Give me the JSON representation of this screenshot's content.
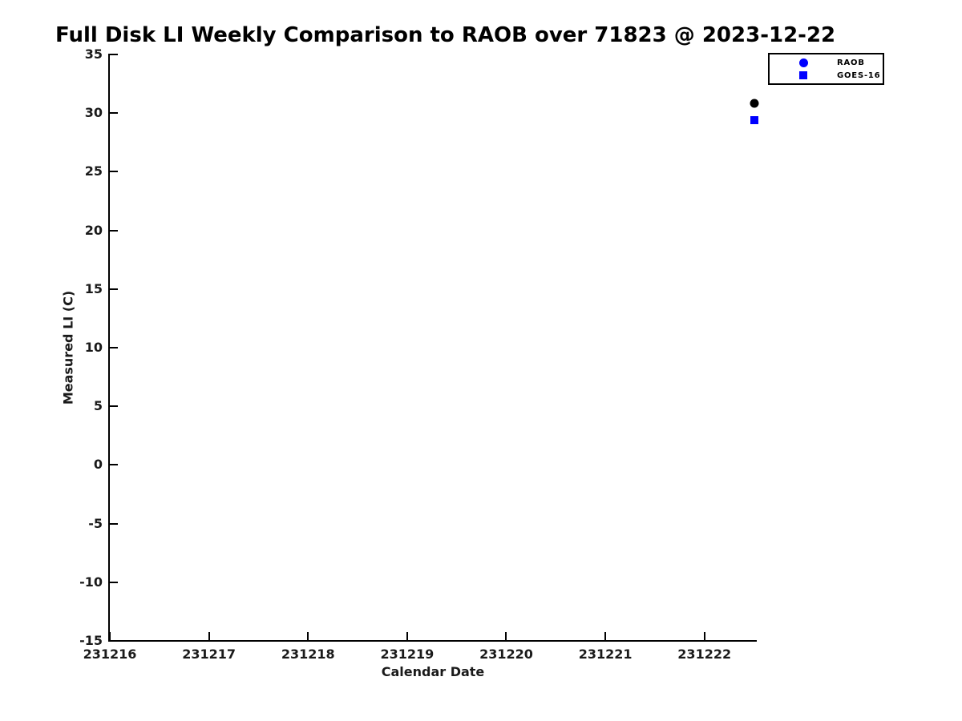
{
  "chart_data": {
    "type": "scatter",
    "title": "Full Disk LI Weekly Comparison to RAOB over 71823 @ 2023-12-22",
    "xlabel": "Calendar Date",
    "ylabel": "Measured LI (C)",
    "xlim": [
      231216,
      231222.52
    ],
    "ylim": [
      -15,
      35
    ],
    "grid": false,
    "legend_position": "top-right",
    "x_ticks": [
      {
        "value": 231216,
        "label": "231216"
      },
      {
        "value": 231217,
        "label": "231217"
      },
      {
        "value": 231218,
        "label": "231218"
      },
      {
        "value": 231219,
        "label": "231219"
      },
      {
        "value": 231220,
        "label": "231220"
      },
      {
        "value": 231221,
        "label": "231221"
      },
      {
        "value": 231222,
        "label": "231222"
      }
    ],
    "y_ticks": [
      {
        "value": 35,
        "label": "35"
      },
      {
        "value": 30,
        "label": "30"
      },
      {
        "value": 25,
        "label": "25"
      },
      {
        "value": 20,
        "label": "20"
      },
      {
        "value": 15,
        "label": "15"
      },
      {
        "value": 10,
        "label": "10"
      },
      {
        "value": 5,
        "label": "5"
      },
      {
        "value": 0,
        "label": "0"
      },
      {
        "value": -5,
        "label": "-5"
      },
      {
        "value": -10,
        "label": "-10"
      },
      {
        "value": -15,
        "label": "-15"
      }
    ],
    "series": [
      {
        "name": "RAOB",
        "marker": "circle",
        "data_color": "#000000",
        "legend_color": "#0000ff",
        "points": [
          {
            "x": 231222.5,
            "y": 30.8
          }
        ]
      },
      {
        "name": "GOES-16",
        "marker": "square",
        "data_color": "#0000ff",
        "legend_color": "#0000ff",
        "points": [
          {
            "x": 231222.5,
            "y": 29.4
          }
        ]
      }
    ]
  }
}
